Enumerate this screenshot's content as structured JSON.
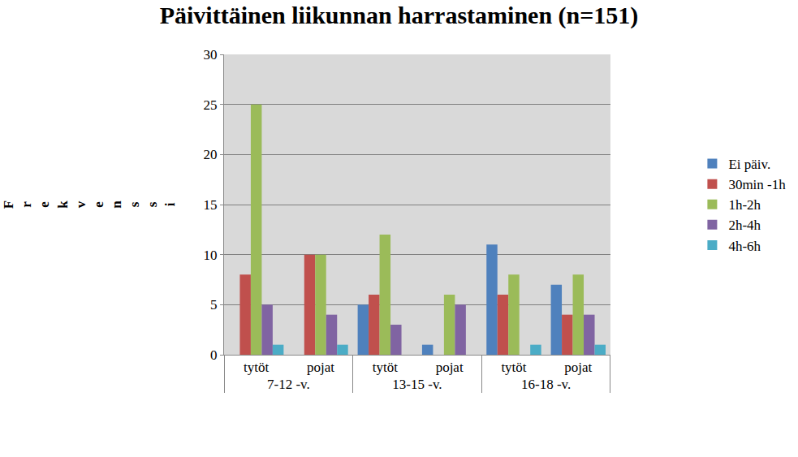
{
  "chart_data": {
    "type": "bar",
    "title": "Päivittäinen liikunnan harrastaminen (n=151)",
    "y_label": "Frekvenssi",
    "categories": [
      [
        "7-12 -v.",
        "tytöt"
      ],
      [
        "7-12 -v.",
        "pojat"
      ],
      [
        "13-15 -v.",
        "tytöt"
      ],
      [
        "13-15 -v.",
        "pojat"
      ],
      [
        "16-18 -v.",
        "tytöt"
      ],
      [
        "16-18 -v.",
        "pojat"
      ]
    ],
    "series": [
      {
        "name": "Ei päiv.",
        "color": "#4F81BD",
        "values": [
          0,
          0,
          5,
          1,
          11,
          7
        ]
      },
      {
        "name": "30min -1h",
        "color": "#C0504D",
        "values": [
          8,
          10,
          6,
          0,
          6,
          4
        ]
      },
      {
        "name": "1h-2h",
        "color": "#9BBB59",
        "values": [
          25,
          10,
          12,
          6,
          8,
          8
        ]
      },
      {
        "name": "2h-4h",
        "color": "#8064A2",
        "values": [
          5,
          4,
          3,
          5,
          0,
          4
        ]
      },
      {
        "name": "4h-6h",
        "color": "#4BACC6",
        "values": [
          1,
          1,
          0,
          0,
          1,
          1
        ]
      }
    ],
    "ylim": [
      0,
      30
    ],
    "yticks": [
      0,
      5,
      10,
      15,
      20,
      25,
      30
    ],
    "grid": true,
    "legend": "right"
  }
}
